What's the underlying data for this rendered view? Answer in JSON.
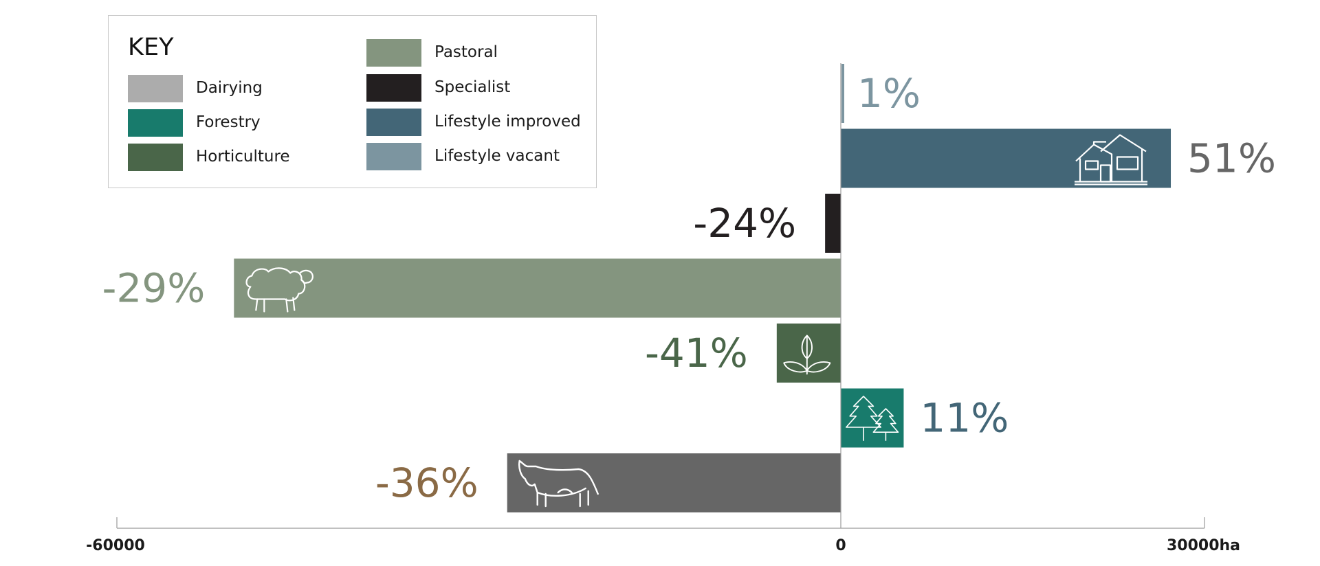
{
  "chart_data": {
    "type": "bar",
    "orientation": "horizontal",
    "legend_title": "KEY",
    "legend": [
      {
        "name": "Dairying",
        "color": "#acacac"
      },
      {
        "name": "Forestry",
        "color": "#187b6c"
      },
      {
        "name": "Horticulture",
        "color": "#4a6649"
      },
      {
        "name": "Pastoral",
        "color": "#84957f"
      },
      {
        "name": "Specialist",
        "color": "#231f20"
      },
      {
        "name": "Lifestyle improved",
        "color": "#436677"
      },
      {
        "name": "Lifestyle vacant",
        "color": "#7c95a0"
      }
    ],
    "legend_placement": "top-left",
    "bars": [
      {
        "category": "Lifestyle vacant",
        "value": 150,
        "label": "1%",
        "color": "#7c95a0",
        "label_color": "#7c95a0",
        "icon": ""
      },
      {
        "category": "Lifestyle improved",
        "value": 27300,
        "label": "51%",
        "color": "#436677",
        "label_color": "#666666",
        "icon": "house-icon"
      },
      {
        "category": "Specialist",
        "value": -1300,
        "label": "-24%",
        "color": "#231f20",
        "label_color": "#231f20",
        "icon": ""
      },
      {
        "category": "Pastoral",
        "value": -50200,
        "label": "-29%",
        "color": "#84957f",
        "label_color": "#84957f",
        "icon": "sheep-icon"
      },
      {
        "category": "Horticulture",
        "value": -5300,
        "label": "-41%",
        "color": "#4a6649",
        "label_color": "#4a6649",
        "icon": "leaf-icon"
      },
      {
        "category": "Forestry",
        "value": 5200,
        "label": "11%",
        "color": "#187b6c",
        "label_color": "#436677",
        "icon": "trees-icon"
      },
      {
        "category": "Dairying",
        "value": -27600,
        "label": "-36%",
        "color": "#666666",
        "label_color": "#8a6a45",
        "icon": "cow-icon"
      }
    ],
    "x_ticks": [
      {
        "value": -60000,
        "label": "-60000"
      },
      {
        "value": 0,
        "label": "0"
      },
      {
        "value": 30000,
        "label": "30000ha"
      }
    ],
    "xlim": [
      -60000,
      30000
    ],
    "grid": false
  }
}
